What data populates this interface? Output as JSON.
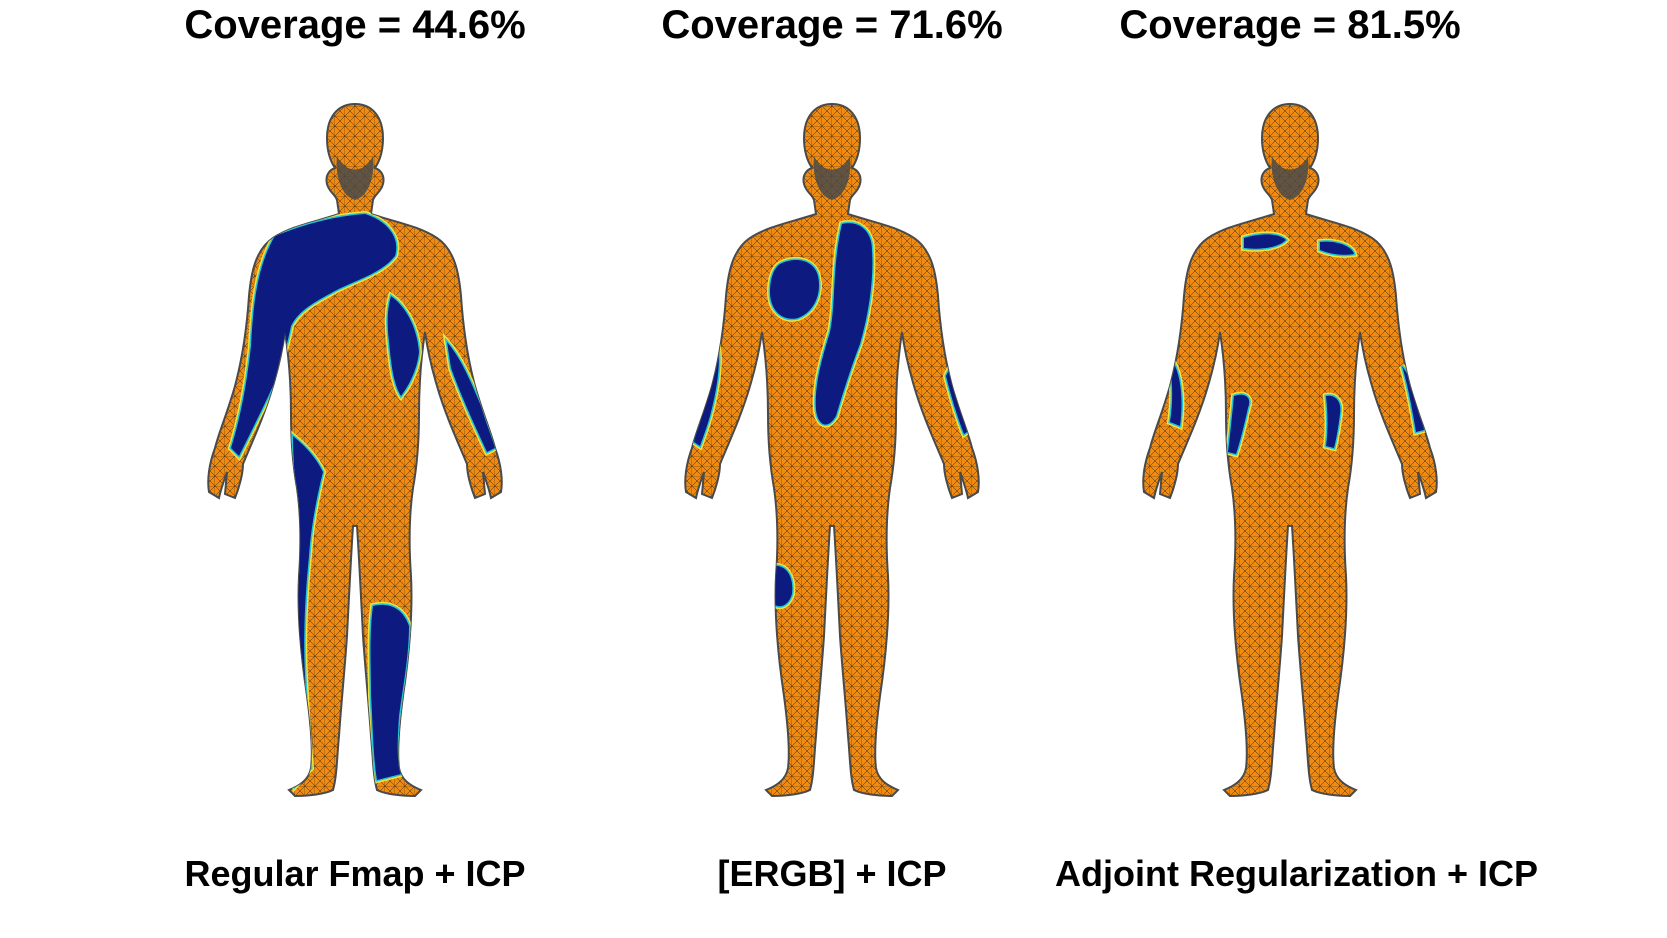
{
  "colors": {
    "mesh_orange": "#f08a10",
    "mesh_blue": "#0d1a7f",
    "mesh_edge": "#3a2a10",
    "transition_cyan": "#23c4d8",
    "transition_yellow": "#f2e23c",
    "head_shadow": "#4a4a4a"
  },
  "panels": [
    {
      "coverage_label": "Coverage = 44.6%",
      "coverage_percent": 44.6,
      "caption": "Regular Fmap + ICP"
    },
    {
      "coverage_label": "Coverage = 71.6%",
      "coverage_percent": 71.6,
      "caption": "[ERGB] + ICP"
    },
    {
      "coverage_label": "Coverage = 81.5%",
      "coverage_percent": 81.5,
      "caption": "Adjoint Regularization + ICP"
    }
  ]
}
